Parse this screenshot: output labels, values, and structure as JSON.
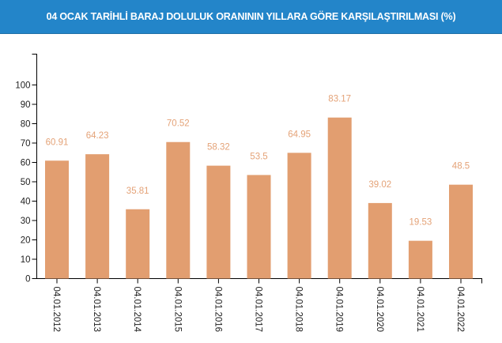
{
  "header": {
    "title": "04 OCAK TARİHLİ BARAJ DOLULUK ORANININ YILLARA GÖRE KARŞILAŞTIRILMASI (%)",
    "background_color": "#2385c9"
  },
  "chart_data": {
    "type": "bar",
    "title": "04 OCAK TARİHLİ BARAJ DOLULUK ORANININ YILLARA GÖRE KARŞILAŞTIRILMASI (%)",
    "xlabel": "",
    "ylabel": "",
    "categories": [
      "04.01.2012",
      "04.01.2013",
      "04.01.2014",
      "04.01.2015",
      "04.01.2016",
      "04.01.2017",
      "04.01.2018",
      "04.01.2019",
      "04.01.2020",
      "04.01.2021",
      "04.01.2022"
    ],
    "values": [
      60.91,
      64.23,
      35.81,
      70.52,
      58.32,
      53.5,
      64.95,
      83.17,
      39.02,
      19.53,
      48.5
    ],
    "value_labels": [
      "60.91",
      "64.23",
      "35.81",
      "70.52",
      "58.32",
      "53.5",
      "64.95",
      "83.17",
      "39.02",
      "19.53",
      "48.5"
    ],
    "yticks": [
      0,
      10,
      20,
      30,
      40,
      50,
      60,
      70,
      80,
      90,
      100
    ],
    "ylim": [
      0,
      100
    ],
    "grid": false,
    "legend": null,
    "bar_color": "#e29e70",
    "label_color": "#e4a277"
  }
}
